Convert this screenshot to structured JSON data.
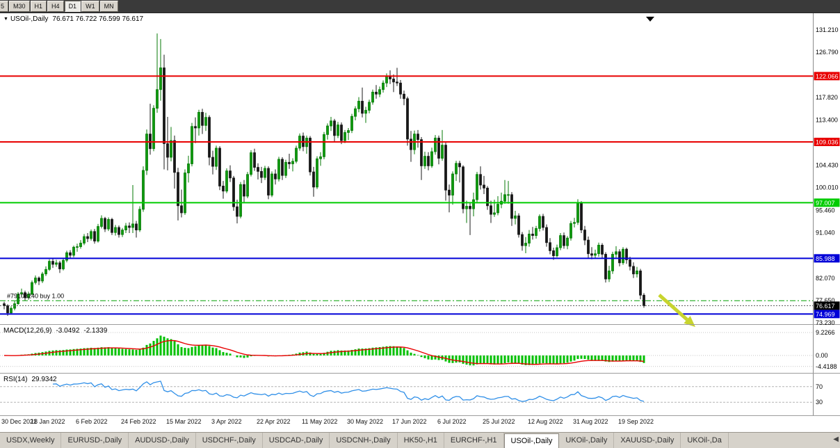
{
  "toolbar": {
    "timeframes": [
      "5",
      "M30",
      "H1",
      "H4",
      "D1",
      "W1",
      "MN"
    ],
    "active": "D1"
  },
  "title": {
    "dropdown_glyph": "▼",
    "symbol_period": "USOil-,Daily",
    "ohlc": "76.671 76.722 76.599 76.617"
  },
  "colors": {
    "bull_body": "#0f9b0f",
    "bull_border": "#067806",
    "bear_body": "#181818",
    "bear_border": "#181818",
    "panel_divider": "#9c9c9c",
    "axis_line": "#8a8a8a",
    "tick_text": "#000000",
    "badge_text": "#ffffff",
    "current_price_badge": "#000000",
    "level_dotted": "#c4c4c4"
  },
  "chart_data": {
    "type": "candlestick",
    "symbol": "USOil-",
    "period": "Daily",
    "price_axis": {
      "range": [
        73.23,
        131.21
      ],
      "ticks": [
        {
          "v": 131.21,
          "label": "131.210"
        },
        {
          "v": 126.79,
          "label": "126.790"
        },
        {
          "v": 117.82,
          "label": "117.820"
        },
        {
          "v": 113.4,
          "label": "113.400"
        },
        {
          "v": 104.43,
          "label": "104.430"
        },
        {
          "v": 100.01,
          "label": "100.010"
        },
        {
          "v": 95.46,
          "label": "95.460"
        },
        {
          "v": 91.04,
          "label": "91.040"
        },
        {
          "v": 82.07,
          "label": "82.070"
        },
        {
          "v": 77.65,
          "label": "77.650"
        },
        {
          "v": 73.23,
          "label": "73.230"
        }
      ]
    },
    "x_labels": [
      "30 Dec 2021",
      "18 Jan 2022",
      "6 Feb 2022",
      "24 Feb 2022",
      "15 Mar 2022",
      "3 Apr 2022",
      "22 Apr 2022",
      "11 May 2022",
      "30 May 2022",
      "17 Jun 2022",
      "6 Jul 2022",
      "25 Jul 2022",
      "12 Aug 2022",
      "31 Aug 2022",
      "19 Sep 2022"
    ],
    "x_label_step": 13,
    "hlines": [
      {
        "price": 122.066,
        "label": "122.066",
        "color": "#e80000",
        "width": 2
      },
      {
        "price": 109.036,
        "label": "109.036",
        "color": "#e80000",
        "width": 2
      },
      {
        "price": 97.007,
        "label": "97.007",
        "color": "#00cc00",
        "width": 2
      },
      {
        "price": 85.988,
        "label": "85.988",
        "color": "#0000d8",
        "width": 2
      },
      {
        "price": 74.969,
        "label": "74.969",
        "color": "#0000d8",
        "width": 2
      }
    ],
    "current_price": {
      "value": 76.617,
      "label": "76.617"
    },
    "order_line": {
      "text": "#79103240 buy 1.00",
      "price": 77.6,
      "color": "#00a000"
    },
    "annotation_arrow": {
      "from": [
        948,
        424
      ],
      "to": [
        1000,
        470
      ],
      "color": "#c8d42e"
    },
    "indicators": {
      "macd": {
        "label": "MACD(12,26,9)",
        "value": "-3.0492",
        "signal": "-2.1339",
        "params": [
          12,
          26,
          9
        ],
        "axis": [
          {
            "v": 9.2266,
            "label": "9.2266"
          },
          {
            "v": 0,
            "label": "0.00"
          },
          {
            "v": -4.4188,
            "label": "-4.4188"
          }
        ],
        "histogram_color": "#00c000",
        "signal_color": "#e80000"
      },
      "rsi": {
        "label": "RSI(14)",
        "value": "29.9342",
        "period": 14,
        "levels": [
          {
            "v": 70,
            "label": "70"
          },
          {
            "v": 30,
            "label": "30"
          }
        ],
        "line_color": "#2f8fe8"
      }
    },
    "ohlc": [
      [
        77.0,
        77.4,
        75.9,
        76.6
      ],
      [
        76.6,
        76.9,
        74.6,
        75.2
      ],
      [
        75.2,
        76.5,
        74.9,
        76.1
      ],
      [
        76.1,
        77.5,
        75.7,
        77.0
      ],
      [
        77.0,
        79.3,
        76.8,
        78.9
      ],
      [
        78.9,
        80.0,
        78.3,
        79.2
      ],
      [
        79.2,
        79.6,
        77.6,
        78.2
      ],
      [
        78.2,
        79.4,
        77.8,
        78.9
      ],
      [
        78.9,
        81.6,
        78.7,
        81.2
      ],
      [
        81.2,
        82.6,
        80.8,
        82.1
      ],
      [
        82.1,
        82.4,
        80.7,
        81.5
      ],
      [
        81.5,
        83.3,
        81.1,
        82.9
      ],
      [
        82.9,
        84.4,
        82.5,
        83.8
      ],
      [
        83.8,
        85.8,
        83.5,
        85.4
      ],
      [
        85.4,
        85.9,
        84.1,
        84.8
      ],
      [
        84.8,
        85.7,
        84.3,
        85.1
      ],
      [
        85.1,
        85.5,
        83.1,
        83.9
      ],
      [
        83.9,
        86.0,
        83.6,
        85.6
      ],
      [
        85.6,
        87.5,
        85.2,
        87.1
      ],
      [
        87.1,
        87.6,
        85.9,
        86.6
      ],
      [
        86.6,
        88.5,
        86.2,
        88.2
      ],
      [
        88.2,
        88.9,
        87.3,
        88.3
      ],
      [
        88.3,
        89.6,
        87.9,
        89.0
      ],
      [
        89.0,
        90.8,
        88.6,
        90.3
      ],
      [
        90.3,
        91.0,
        89.2,
        89.9
      ],
      [
        89.9,
        91.7,
        89.5,
        91.3
      ],
      [
        91.3,
        91.8,
        88.9,
        89.4
      ],
      [
        89.4,
        92.8,
        89.1,
        92.3
      ],
      [
        92.3,
        94.5,
        91.9,
        93.9
      ],
      [
        93.9,
        94.2,
        91.2,
        91.8
      ],
      [
        91.8,
        94.1,
        91.4,
        93.7
      ],
      [
        93.7,
        94.0,
        90.6,
        91.1
      ],
      [
        91.1,
        92.6,
        90.5,
        92.1
      ],
      [
        92.1,
        92.5,
        90.1,
        90.7
      ],
      [
        90.7,
        92.0,
        90.2,
        91.6
      ],
      [
        91.6,
        93.0,
        91.0,
        92.4
      ],
      [
        92.4,
        93.1,
        91.0,
        92.1
      ],
      [
        92.1,
        100.5,
        91.0,
        92.8
      ],
      [
        92.8,
        93.4,
        90.1,
        91.6
      ],
      [
        91.6,
        96.3,
        91.2,
        95.7
      ],
      [
        95.7,
        104.2,
        95.2,
        103.4
      ],
      [
        103.4,
        111.5,
        102.5,
        110.6
      ],
      [
        110.6,
        116.6,
        106.5,
        107.7
      ],
      [
        107.7,
        116.3,
        107.2,
        115.7
      ],
      [
        115.7,
        130.5,
        114.8,
        119.4
      ],
      [
        119.4,
        129.4,
        117.2,
        123.7
      ],
      [
        123.7,
        126.3,
        103.6,
        108.7
      ],
      [
        108.7,
        114.0,
        103.4,
        106.0
      ],
      [
        106.0,
        112.0,
        105.2,
        109.3
      ],
      [
        109.3,
        110.3,
        99.8,
        103.0
      ],
      [
        103.0,
        103.9,
        93.5,
        96.4
      ],
      [
        96.4,
        99.6,
        94.1,
        95.0
      ],
      [
        95.0,
        103.6,
        94.6,
        102.9
      ],
      [
        102.9,
        106.3,
        101.0,
        104.7
      ],
      [
        104.7,
        112.8,
        104.2,
        112.1
      ],
      [
        112.1,
        113.9,
        108.8,
        111.8
      ],
      [
        111.8,
        115.4,
        110.3,
        114.9
      ],
      [
        114.9,
        115.6,
        110.6,
        112.3
      ],
      [
        112.3,
        114.8,
        111.2,
        113.9
      ],
      [
        113.9,
        114.3,
        104.4,
        106.0
      ],
      [
        106.0,
        107.3,
        102.6,
        104.2
      ],
      [
        104.2,
        108.3,
        103.5,
        107.8
      ],
      [
        107.8,
        108.2,
        99.5,
        100.3
      ],
      [
        100.3,
        101.3,
        97.8,
        99.3
      ],
      [
        99.3,
        103.8,
        98.9,
        103.3
      ],
      [
        103.3,
        104.4,
        101.1,
        101.9
      ],
      [
        101.9,
        102.3,
        95.4,
        96.2
      ],
      [
        96.2,
        97.6,
        92.9,
        94.3
      ],
      [
        94.3,
        101.1,
        93.9,
        100.6
      ],
      [
        100.6,
        101.5,
        97.0,
        98.3
      ],
      [
        98.3,
        103.1,
        97.9,
        102.6
      ],
      [
        102.6,
        107.4,
        102.2,
        106.9
      ],
      [
        106.9,
        107.7,
        103.3,
        104.0
      ],
      [
        104.0,
        104.8,
        101.6,
        103.2
      ],
      [
        103.2,
        104.1,
        100.9,
        102.0
      ],
      [
        102.0,
        104.3,
        101.5,
        103.8
      ],
      [
        103.8,
        104.2,
        97.7,
        98.5
      ],
      [
        98.5,
        103.2,
        98.1,
        102.7
      ],
      [
        102.7,
        103.6,
        100.6,
        101.7
      ],
      [
        101.7,
        106.1,
        101.2,
        105.6
      ],
      [
        105.6,
        106.0,
        101.5,
        102.4
      ],
      [
        102.4,
        105.5,
        101.9,
        105.0
      ],
      [
        105.0,
        106.7,
        103.7,
        104.7
      ],
      [
        104.7,
        105.8,
        103.2,
        105.2
      ],
      [
        105.2,
        108.3,
        104.8,
        107.8
      ],
      [
        107.8,
        110.7,
        107.3,
        110.2
      ],
      [
        110.2,
        110.9,
        107.2,
        108.1
      ],
      [
        108.1,
        110.3,
        106.7,
        109.8
      ],
      [
        109.8,
        110.2,
        102.4,
        103.1
      ],
      [
        103.1,
        104.1,
        98.2,
        100.1
      ],
      [
        100.1,
        106.2,
        99.7,
        105.7
      ],
      [
        105.7,
        107.0,
        104.3,
        106.1
      ],
      [
        106.1,
        111.0,
        105.6,
        110.5
      ],
      [
        110.5,
        112.7,
        109.5,
        112.2
      ],
      [
        112.2,
        114.0,
        111.2,
        113.2
      ],
      [
        113.2,
        113.6,
        109.1,
        110.3
      ],
      [
        110.3,
        113.0,
        109.8,
        112.4
      ],
      [
        112.4,
        112.9,
        108.6,
        109.3
      ],
      [
        109.3,
        111.4,
        108.8,
        110.9
      ],
      [
        110.9,
        111.8,
        109.4,
        111.3
      ],
      [
        111.3,
        114.6,
        110.8,
        114.1
      ],
      [
        114.1,
        116.1,
        113.3,
        115.6
      ],
      [
        115.6,
        117.9,
        114.9,
        117.1
      ],
      [
        117.1,
        119.8,
        113.9,
        114.7
      ],
      [
        114.7,
        116.0,
        112.8,
        115.3
      ],
      [
        115.3,
        117.4,
        114.7,
        116.9
      ],
      [
        116.9,
        119.4,
        116.4,
        118.9
      ],
      [
        118.9,
        120.3,
        117.6,
        118.5
      ],
      [
        118.5,
        120.0,
        117.9,
        119.4
      ],
      [
        119.4,
        121.2,
        118.8,
        120.7
      ],
      [
        120.7,
        122.6,
        119.9,
        122.1
      ],
      [
        122.1,
        123.2,
        120.5,
        121.5
      ],
      [
        121.5,
        122.4,
        118.9,
        120.9
      ],
      [
        120.9,
        123.7,
        120.1,
        120.7
      ],
      [
        120.7,
        121.3,
        117.6,
        118.5
      ],
      [
        118.5,
        119.2,
        116.3,
        117.6
      ],
      [
        117.6,
        118.0,
        108.3,
        109.6
      ],
      [
        109.6,
        111.2,
        105.1,
        107.5
      ],
      [
        107.5,
        111.3,
        106.6,
        110.6
      ],
      [
        110.6,
        111.4,
        107.9,
        109.5
      ],
      [
        109.5,
        110.0,
        101.5,
        104.3
      ],
      [
        104.3,
        107.1,
        103.7,
        106.2
      ],
      [
        106.2,
        107.0,
        103.4,
        104.3
      ],
      [
        104.3,
        107.9,
        103.9,
        107.1
      ],
      [
        107.1,
        110.4,
        106.5,
        109.8
      ],
      [
        109.8,
        110.3,
        104.6,
        105.8
      ],
      [
        105.8,
        111.4,
        105.3,
        108.4
      ],
      [
        108.4,
        108.9,
        97.4,
        99.5
      ],
      [
        99.5,
        100.6,
        95.1,
        98.5
      ],
      [
        98.5,
        103.2,
        96.6,
        102.7
      ],
      [
        102.7,
        105.3,
        101.3,
        104.8
      ],
      [
        104.8,
        105.3,
        101.0,
        104.1
      ],
      [
        104.1,
        104.4,
        94.9,
        95.8
      ],
      [
        95.8,
        97.4,
        93.0,
        96.3
      ],
      [
        96.3,
        97.0,
        90.6,
        95.8
      ],
      [
        95.8,
        99.0,
        94.3,
        97.6
      ],
      [
        97.6,
        103.1,
        96.9,
        102.6
      ],
      [
        102.6,
        104.2,
        99.6,
        100.5
      ],
      [
        100.5,
        102.3,
        98.7,
        99.9
      ],
      [
        99.9,
        100.3,
        95.6,
        96.4
      ],
      [
        96.4,
        97.4,
        93.0,
        94.7
      ],
      [
        94.7,
        97.6,
        94.2,
        95.0
      ],
      [
        95.0,
        98.3,
        94.5,
        96.7
      ],
      [
        96.7,
        99.0,
        95.9,
        97.3
      ],
      [
        97.3,
        101.5,
        96.8,
        98.6
      ],
      [
        98.6,
        101.3,
        96.8,
        98.6
      ],
      [
        98.6,
        99.1,
        92.4,
        93.9
      ],
      [
        93.9,
        95.4,
        92.7,
        94.4
      ],
      [
        94.4,
        94.9,
        90.1,
        90.7
      ],
      [
        90.7,
        91.2,
        87.5,
        88.5
      ],
      [
        88.5,
        90.2,
        87.0,
        89.0
      ],
      [
        89.0,
        91.6,
        88.3,
        90.8
      ],
      [
        90.8,
        92.2,
        89.7,
        90.5
      ],
      [
        90.5,
        92.4,
        89.9,
        91.9
      ],
      [
        91.9,
        94.7,
        91.3,
        94.3
      ],
      [
        94.3,
        94.8,
        91.5,
        92.1
      ],
      [
        92.1,
        92.7,
        88.3,
        89.1
      ],
      [
        89.1,
        90.0,
        86.8,
        87.5
      ],
      [
        87.5,
        88.1,
        85.7,
        86.5
      ],
      [
        86.5,
        88.7,
        86.2,
        88.1
      ],
      [
        88.1,
        91.0,
        87.6,
        90.5
      ],
      [
        90.5,
        91.1,
        87.9,
        88.5
      ],
      [
        88.5,
        90.4,
        87.8,
        90.0
      ],
      [
        90.0,
        93.4,
        89.5,
        92.9
      ],
      [
        92.9,
        94.0,
        92.1,
        93.1
      ],
      [
        93.1,
        97.7,
        92.6,
        97.0
      ],
      [
        97.0,
        97.3,
        91.0,
        91.6
      ],
      [
        91.6,
        92.4,
        88.6,
        89.6
      ],
      [
        89.6,
        90.3,
        86.1,
        86.9
      ],
      [
        86.9,
        88.2,
        85.8,
        86.6
      ],
      [
        86.6,
        87.7,
        85.9,
        86.9
      ],
      [
        86.9,
        89.1,
        86.3,
        88.6
      ],
      [
        88.6,
        89.0,
        85.9,
        86.8
      ],
      [
        86.8,
        87.2,
        81.2,
        81.9
      ],
      [
        81.9,
        84.5,
        81.3,
        83.5
      ],
      [
        83.5,
        87.3,
        82.9,
        86.8
      ],
      [
        86.8,
        88.4,
        86.1,
        87.3
      ],
      [
        87.3,
        87.8,
        84.4,
        85.1
      ],
      [
        85.1,
        88.2,
        84.7,
        87.8
      ],
      [
        87.8,
        88.1,
        84.9,
        85.7
      ],
      [
        85.7,
        86.3,
        83.6,
        84.4
      ],
      [
        84.4,
        85.2,
        82.1,
        82.9
      ],
      [
        82.9,
        84.3,
        82.2,
        83.5
      ],
      [
        83.5,
        83.9,
        77.9,
        78.7
      ],
      [
        78.7,
        79.1,
        76.2,
        76.6
      ]
    ]
  },
  "tabs": {
    "items": [
      "USDX,Weekly",
      "EURUSD-,Daily",
      "AUDUSD-,Daily",
      "USDCHF-,Daily",
      "USDCAD-,Daily",
      "USDCNH-,Daily",
      "HK50-,H1",
      "EURCHF-,H1",
      "USOil-,Daily",
      "UKOil-,Daily",
      "XAUUSD-,Daily",
      "UKOil-,Da"
    ],
    "active_index": 8,
    "scroll_glyph": "◀"
  }
}
